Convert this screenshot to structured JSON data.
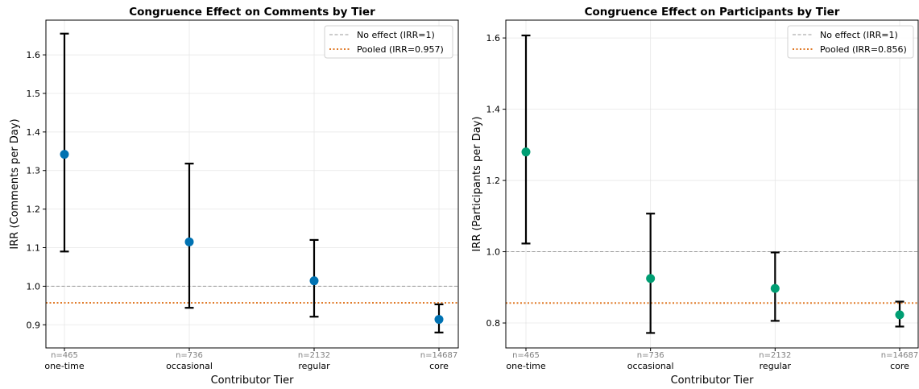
{
  "chart_data": [
    {
      "type": "scatter",
      "title": "Congruence Effect on Comments by Tier",
      "xlabel": "Contributor Tier",
      "ylabel": "IRR (Comments per Day)",
      "categories": [
        "one-time",
        "occasional",
        "regular",
        "core"
      ],
      "n_labels": [
        "n=465",
        "n=736",
        "n=2132",
        "n=14687"
      ],
      "series": [
        {
          "values": [
            1.342,
            1.115,
            1.014,
            0.914
          ],
          "ci_low": [
            1.09,
            0.944,
            0.921,
            0.88
          ],
          "ci_high": [
            1.655,
            1.318,
            1.12,
            0.953
          ],
          "color": "#0072b2"
        }
      ],
      "reference_lines": [
        {
          "label": "No effect (IRR=1)",
          "value": 1.0,
          "style": "dashed",
          "color": "#999999"
        },
        {
          "label": "Pooled (IRR=0.957)",
          "value": 0.957,
          "style": "dotted",
          "color": "#e07b2a"
        }
      ],
      "ylim": [
        0.84,
        1.69
      ],
      "yticks": [
        0.9,
        1.0,
        1.1,
        1.2,
        1.3,
        1.4,
        1.5,
        1.6
      ],
      "ytick_labels": [
        "0.9",
        "1.0",
        "1.1",
        "1.2",
        "1.3",
        "1.4",
        "1.5",
        "1.6"
      ],
      "grid": true,
      "legend_position": "top-right"
    },
    {
      "type": "scatter",
      "title": "Congruence Effect on Participants by Tier",
      "xlabel": "Contributor Tier",
      "ylabel": "IRR (Participants per Day)",
      "categories": [
        "one-time",
        "occasional",
        "regular",
        "core"
      ],
      "n_labels": [
        "n=465",
        "n=736",
        "n=2132",
        "n=14687"
      ],
      "series": [
        {
          "values": [
            1.28,
            0.925,
            0.897,
            0.823
          ],
          "ci_low": [
            1.023,
            0.772,
            0.806,
            0.79
          ],
          "ci_high": [
            1.607,
            1.107,
            0.998,
            0.86
          ],
          "color": "#009e73"
        }
      ],
      "reference_lines": [
        {
          "label": "No effect (IRR=1)",
          "value": 1.0,
          "style": "dashed",
          "color": "#999999"
        },
        {
          "label": "Pooled (IRR=0.856)",
          "value": 0.856,
          "style": "dotted",
          "color": "#e07b2a"
        }
      ],
      "ylim": [
        0.73,
        1.65
      ],
      "yticks": [
        0.8,
        1.0,
        1.2,
        1.4,
        1.6
      ],
      "ytick_labels": [
        "0.8",
        "1.0",
        "1.2",
        "1.4",
        "1.6"
      ],
      "grid": true,
      "legend_position": "top-right"
    }
  ]
}
